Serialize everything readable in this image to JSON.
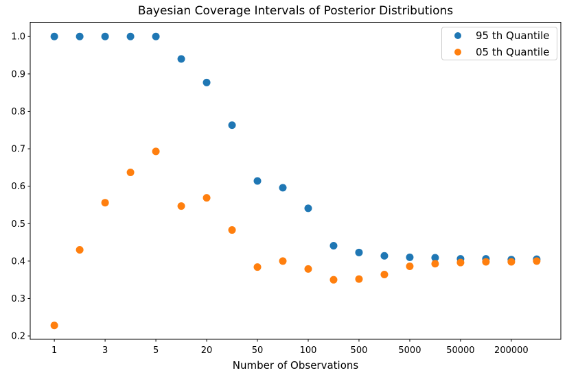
{
  "chart_data": {
    "type": "scatter",
    "title": "Bayesian Coverage Intervals of Posterior Distributions",
    "xlabel": "Number of Observations",
    "ylabel": "",
    "x_scale": "categorical-evenly-spaced",
    "num_points_per_series": 20,
    "x_tick_labels": [
      "1",
      "3",
      "5",
      "20",
      "50",
      "100",
      "500",
      "5000",
      "50000",
      "200000"
    ],
    "x_tick_positions": [
      0,
      2,
      4,
      6,
      8,
      10,
      12,
      14,
      16,
      18
    ],
    "y_tick_labels": [
      "0.2",
      "0.3",
      "0.4",
      "0.5",
      "0.6",
      "0.7",
      "0.8",
      "0.9",
      "1.0"
    ],
    "y_ticks": [
      0.2,
      0.3,
      0.4,
      0.5,
      0.6,
      0.7,
      0.8,
      0.9,
      1.0
    ],
    "xlim": [
      -0.95,
      19.95
    ],
    "ylim": [
      0.191,
      1.038
    ],
    "grid": false,
    "legend_position": "upper right",
    "series": [
      {
        "name": "95 th Quantile",
        "color": "#1f77b4",
        "values": [
          1.0,
          1.0,
          1.0,
          1.0,
          1.0,
          0.94,
          0.877,
          0.763,
          0.614,
          0.596,
          0.541,
          0.441,
          0.423,
          0.414,
          0.41,
          0.409,
          0.406,
          0.406,
          0.404,
          0.405
        ]
      },
      {
        "name": "05 th Quantile",
        "color": "#ff7f0e",
        "values": [
          0.228,
          0.43,
          0.556,
          0.637,
          0.693,
          0.547,
          0.569,
          0.483,
          0.384,
          0.4,
          0.379,
          0.35,
          0.352,
          0.364,
          0.386,
          0.393,
          0.396,
          0.398,
          0.398,
          0.4
        ]
      }
    ],
    "axis_color": "#000000",
    "tick_font_px": 13,
    "marker_radius_px": 5.5
  }
}
